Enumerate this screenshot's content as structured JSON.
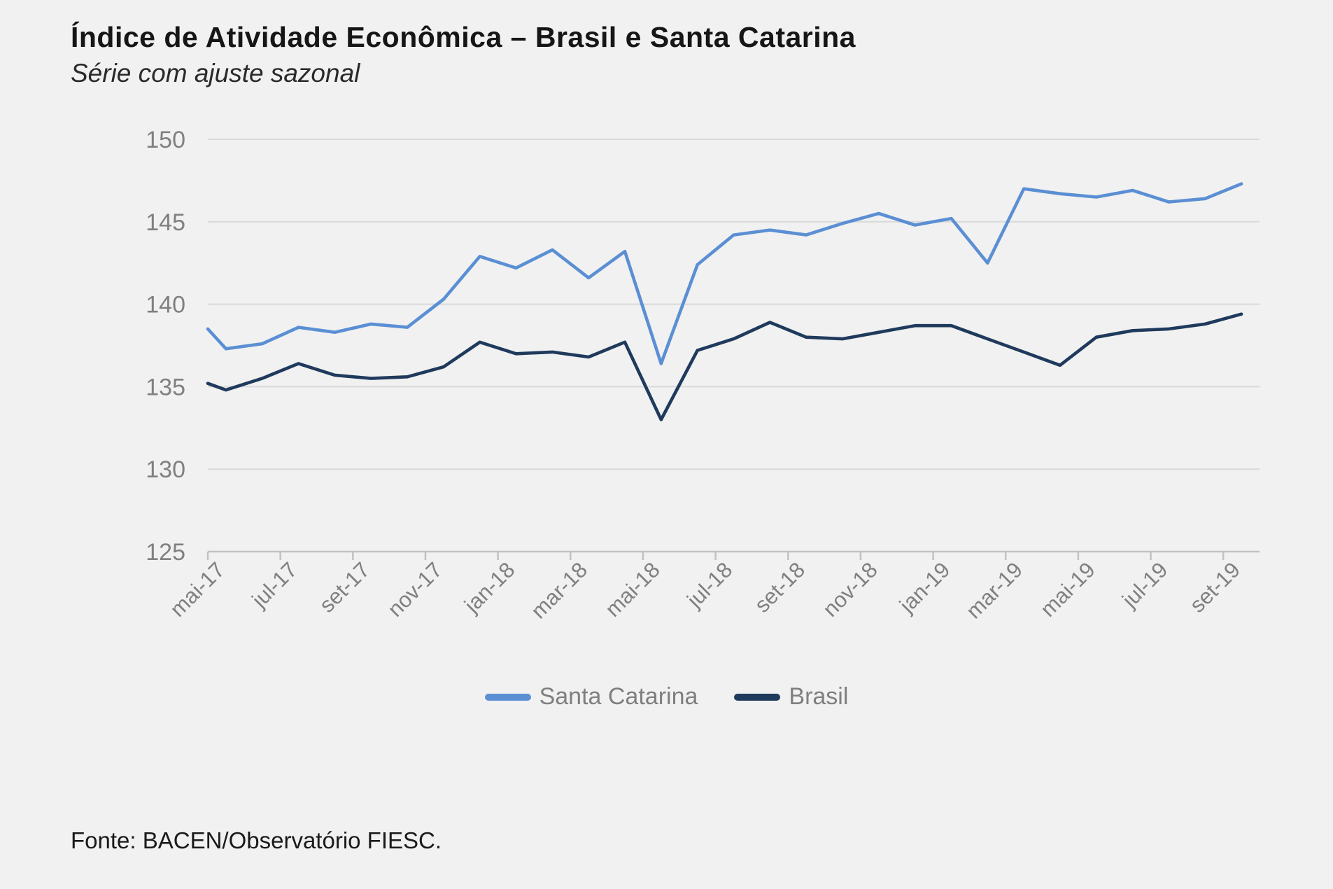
{
  "title": "Índice de Atividade Econômica – Brasil e Santa Catarina",
  "subtitle": "Série com ajuste sazonal",
  "source": "Fonte: BACEN/Observatório FIESC.",
  "legend": {
    "items": [
      {
        "label": "Santa Catarina",
        "color": "#5b8fd4"
      },
      {
        "label": "Brasil",
        "color": "#1f3a5c"
      }
    ]
  },
  "colors": {
    "background": "#f1f1f1",
    "gridline": "#d9d9d9",
    "axis_line": "#c2c2c2",
    "tick_label": "#808080",
    "santa_catarina": "#5b8fd4",
    "brasil": "#1f3a5c"
  },
  "chart_data": {
    "type": "line",
    "title": "Índice de Atividade Econômica – Brasil e Santa Catarina",
    "subtitle": "Série com ajuste sazonal",
    "x": [
      "mai-17",
      "jun-17",
      "jul-17",
      "ago-17",
      "set-17",
      "out-17",
      "nov-17",
      "dez-17",
      "jan-18",
      "fev-18",
      "mar-18",
      "abr-18",
      "mai-18",
      "jun-18",
      "jul-18",
      "ago-18",
      "set-18",
      "out-18",
      "nov-18",
      "dez-18",
      "jan-19",
      "fev-19",
      "mar-19",
      "abr-19",
      "mai-19",
      "jun-19",
      "jul-19",
      "ago-19",
      "set-19"
    ],
    "x_tick_labels": [
      "mai-17",
      "jul-17",
      "set-17",
      "nov-17",
      "jan-18",
      "mar-18",
      "mai-18",
      "jul-18",
      "set-18",
      "nov-18",
      "jan-19",
      "mar-19",
      "mai-19",
      "jul-19",
      "set-19"
    ],
    "x_label_every": 2,
    "ylim": [
      125,
      150
    ],
    "yticks": [
      125,
      130,
      135,
      140,
      145,
      150
    ],
    "grid": true,
    "legend_position": "bottom",
    "series": [
      {
        "name": "Santa Catarina",
        "color": "#5b8fd4",
        "edge_start": 138.5,
        "values": [
          137.3,
          137.6,
          138.6,
          138.3,
          138.8,
          138.6,
          140.3,
          142.9,
          142.2,
          143.3,
          141.6,
          143.2,
          136.4,
          142.4,
          144.2,
          144.5,
          144.2,
          144.9,
          145.5,
          144.8,
          145.2,
          142.5,
          147.0,
          146.7,
          146.5,
          146.9,
          146.2,
          146.4,
          147.3
        ]
      },
      {
        "name": "Brasil",
        "color": "#1f3a5c",
        "edge_start": 135.2,
        "values": [
          134.8,
          135.5,
          136.4,
          135.7,
          135.5,
          135.6,
          136.2,
          137.7,
          137.0,
          137.1,
          136.8,
          137.7,
          133.0,
          137.2,
          137.9,
          138.9,
          138.0,
          137.9,
          138.3,
          138.7,
          138.7,
          137.9,
          137.1,
          136.3,
          138.0,
          138.4,
          138.5,
          138.8,
          139.4
        ]
      }
    ]
  }
}
